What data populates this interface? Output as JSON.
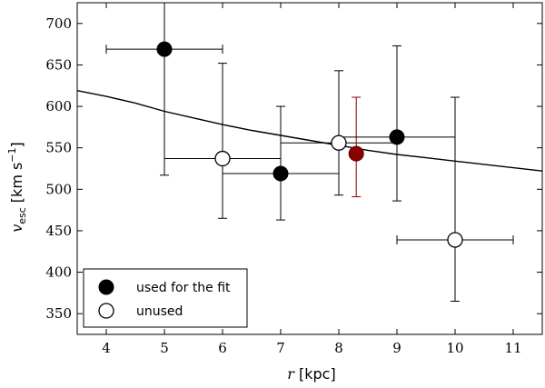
{
  "chart_data": {
    "type": "scatter",
    "xlabel": {
      "var": "r",
      "unit": "[kpc]"
    },
    "ylabel": {
      "var": "v",
      "sub": "esc",
      "unit": "[km s",
      "unit_sup": "−1",
      "unit_end": "]"
    },
    "xlim": [
      3.5,
      11.5
    ],
    "ylim": [
      325,
      725
    ],
    "xticks": [
      4,
      5,
      6,
      7,
      8,
      9,
      10,
      11
    ],
    "yticks": [
      350,
      400,
      450,
      500,
      550,
      600,
      650,
      700
    ],
    "grid": false,
    "legend": {
      "placement": "bottom-left",
      "entries": [
        {
          "label": "used for the fit",
          "marker": "filled-circle"
        },
        {
          "label": "unused",
          "marker": "open-circle"
        }
      ]
    },
    "points": [
      {
        "x": 5.0,
        "y": 669,
        "xerr": [
          4.0,
          6.0
        ],
        "yerr": [
          517,
          725
        ],
        "status": "used"
      },
      {
        "x": 6.0,
        "y": 537,
        "xerr": [
          5.0,
          7.0
        ],
        "yerr": [
          465,
          652
        ],
        "status": "unused"
      },
      {
        "x": 7.0,
        "y": 519,
        "xerr": [
          6.0,
          8.0
        ],
        "yerr": [
          463,
          600
        ],
        "status": "used"
      },
      {
        "x": 8.0,
        "y": 556,
        "xerr": [
          7.0,
          9.0
        ],
        "yerr": [
          493,
          643
        ],
        "status": "unused"
      },
      {
        "x": 8.3,
        "y": 543,
        "xerr": null,
        "yerr": [
          491,
          611
        ],
        "status": "highlight"
      },
      {
        "x": 9.0,
        "y": 563,
        "xerr": [
          8.0,
          10.0
        ],
        "yerr": [
          486,
          673
        ],
        "status": "used"
      },
      {
        "x": 10.0,
        "y": 439,
        "xerr": [
          9.0,
          11.0
        ],
        "yerr": [
          365,
          611
        ],
        "status": "unused"
      }
    ],
    "fit_curve": {
      "x": [
        3.5,
        4,
        4.5,
        5,
        5.5,
        6,
        6.5,
        7,
        7.5,
        8,
        8.5,
        9,
        9.5,
        10,
        10.5,
        11,
        11.5
      ],
      "y": [
        619,
        612,
        604,
        594,
        586,
        578,
        571,
        565,
        559,
        553,
        547,
        542,
        538,
        534,
        530,
        526,
        522
      ]
    },
    "colors": {
      "axis": "#000000",
      "marker": "#000000",
      "highlight": "#8b0000",
      "highlight_edge": "#5a0000",
      "curve": "#000000"
    }
  }
}
